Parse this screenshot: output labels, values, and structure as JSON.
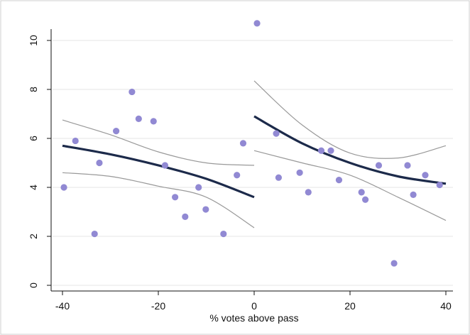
{
  "chart_data": {
    "type": "scatter",
    "xlabel": "% votes above pass",
    "ylabel": "",
    "xlim": [
      -40,
      40
    ],
    "ylim": [
      0,
      10
    ],
    "xticks": [
      -40,
      -20,
      0,
      20,
      40
    ],
    "yticks": [
      0,
      2,
      4,
      6,
      8,
      10
    ],
    "grid": "horizontal",
    "colors": {
      "points": "#9189d3",
      "fit": "#1c2a4a",
      "ci": "#999999",
      "grid": "#e6e6e6",
      "axis": "#111111"
    },
    "points": [
      {
        "x": -39.7,
        "y": 4.0
      },
      {
        "x": -37.3,
        "y": 5.9
      },
      {
        "x": -33.3,
        "y": 2.1
      },
      {
        "x": -32.3,
        "y": 5.0
      },
      {
        "x": -28.8,
        "y": 6.3
      },
      {
        "x": -25.5,
        "y": 7.9
      },
      {
        "x": -24.1,
        "y": 6.8
      },
      {
        "x": -21.0,
        "y": 6.7
      },
      {
        "x": -18.6,
        "y": 4.9
      },
      {
        "x": -16.5,
        "y": 3.6
      },
      {
        "x": -14.4,
        "y": 2.8
      },
      {
        "x": -11.6,
        "y": 4.0
      },
      {
        "x": -10.1,
        "y": 3.1
      },
      {
        "x": -6.4,
        "y": 2.1
      },
      {
        "x": -3.6,
        "y": 4.5
      },
      {
        "x": -2.3,
        "y": 5.8
      },
      {
        "x": 0.6,
        "y": 10.7
      },
      {
        "x": 4.6,
        "y": 6.2
      },
      {
        "x": 5.1,
        "y": 4.4
      },
      {
        "x": 9.5,
        "y": 4.6
      },
      {
        "x": 11.3,
        "y": 3.8
      },
      {
        "x": 14.0,
        "y": 5.5
      },
      {
        "x": 16.0,
        "y": 5.5
      },
      {
        "x": 17.7,
        "y": 4.3
      },
      {
        "x": 22.4,
        "y": 3.8
      },
      {
        "x": 23.2,
        "y": 3.5
      },
      {
        "x": 26.0,
        "y": 4.9
      },
      {
        "x": 29.2,
        "y": 0.9
      },
      {
        "x": 32.0,
        "y": 4.9
      },
      {
        "x": 33.2,
        "y": 3.7
      },
      {
        "x": 35.7,
        "y": 4.5
      },
      {
        "x": 38.7,
        "y": 4.1
      }
    ],
    "fit_series": [
      {
        "segment": "left",
        "x": [
          -40,
          -30,
          -20,
          -10,
          0
        ],
        "y": [
          5.7,
          5.35,
          4.9,
          4.35,
          3.6
        ],
        "ci_upper": [
          6.75,
          6.15,
          5.45,
          5.0,
          4.9
        ],
        "ci_lower": [
          4.6,
          4.45,
          4.05,
          3.6,
          2.35
        ]
      },
      {
        "segment": "right",
        "x": [
          0,
          10,
          20,
          30,
          40
        ],
        "y": [
          6.9,
          5.8,
          5.0,
          4.45,
          4.15
        ],
        "ci_upper": [
          8.35,
          6.55,
          5.4,
          5.2,
          5.7
        ],
        "ci_lower": [
          5.5,
          5.0,
          4.5,
          3.6,
          2.65
        ]
      }
    ]
  }
}
